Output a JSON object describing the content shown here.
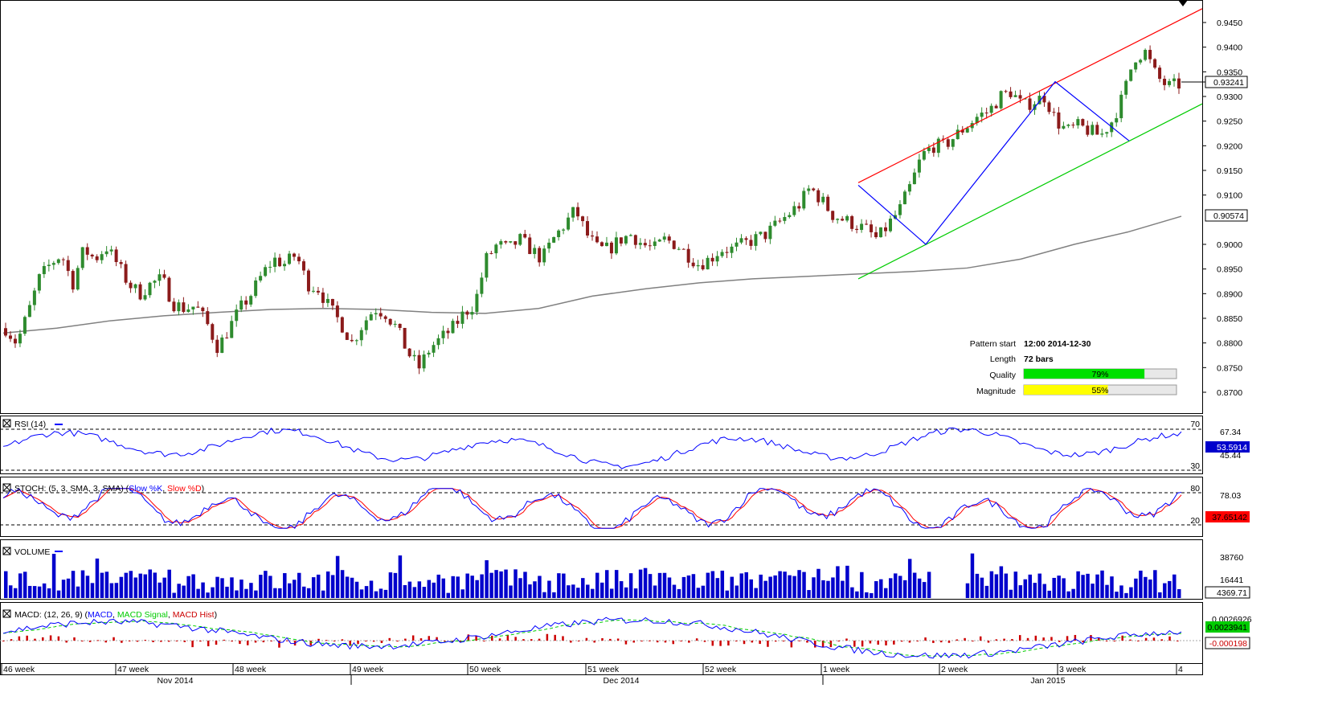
{
  "main_panel": {
    "y_ticks": [
      "0.9450",
      "0.9400",
      "0.9350",
      "0.9300",
      "0.9250",
      "0.9200",
      "0.9150",
      "0.9100",
      "0.9000",
      "0.8950",
      "0.8900",
      "0.8850",
      "0.8800",
      "0.8750",
      "0.8700"
    ],
    "current_price": "0.93241",
    "ma_value": "0.90574",
    "pattern_info": {
      "start_label": "Pattern start",
      "start_value": "12:00 2014-12-30",
      "length_label": "Length",
      "length_value": "72 bars",
      "quality_label": "Quality",
      "quality_value": "79%",
      "quality_fraction": 0.79,
      "magnitude_label": "Magnitude",
      "magnitude_value": "55%",
      "magnitude_fraction": 0.55
    }
  },
  "rsi_panel": {
    "title": "RSI (14)",
    "levels": [
      "70",
      "30"
    ],
    "side_values": [
      "67.34",
      "45.44"
    ],
    "current": "53.5914"
  },
  "stoch_panel": {
    "title_prefix": "STOCH: (5, 3, SMA, 3, SMA)",
    "slow_k": "Slow %K",
    "slow_d": "Slow %D",
    "levels": [
      "80",
      "20"
    ],
    "side_value": "78.03",
    "current": "37.65142"
  },
  "volume_panel": {
    "title": "VOLUME",
    "ticks": [
      "38760",
      "16441"
    ],
    "current": "4369.71"
  },
  "macd_panel": {
    "title_prefix": "MACD: (12, 26, 9)",
    "macd": "MACD",
    "signal": "MACD Signal",
    "hist": "MACD Hist",
    "side_value": "0.0026926",
    "current_macd": "0.0023941",
    "current_hist": "-0.000198"
  },
  "x_axis": {
    "weeks": [
      "46 week",
      "47 week",
      "48 week",
      "49 week",
      "50 week",
      "51 week",
      "52 week",
      "1 week",
      "2 week",
      "3 week",
      "4"
    ],
    "months": [
      "Nov 2014",
      "Dec 2014",
      "Jan 2015"
    ]
  },
  "colors": {
    "up_candle": "#2e8b2e",
    "down_candle": "#8b1a1a",
    "channel_upper": "#ff0000",
    "channel_lower": "#00cc00",
    "zigzag": "#0000ff",
    "moving_average": "#808080",
    "rsi": "#0000ff",
    "stoch_k": "#0000ff",
    "stoch_d": "#ff0000",
    "volume": "#0000cc",
    "macd": "#0000ff",
    "macd_signal": "#00cc00",
    "macd_hist": "#cc0000",
    "quality_bar": "#00e000",
    "magnitude_bar": "#ffff00"
  },
  "chart_data": {
    "type": "candlestick",
    "description_instrument": "",
    "y_range": [
      0.8675,
      0.948
    ],
    "price_path": [
      [
        0,
        0.883
      ],
      [
        2,
        0.88
      ],
      [
        4,
        0.886
      ],
      [
        6,
        0.893
      ],
      [
        8,
        0.896
      ],
      [
        10,
        0.898
      ],
      [
        12,
        0.892
      ],
      [
        14,
        0.899
      ],
      [
        16,
        0.897
      ],
      [
        18,
        0.8995
      ],
      [
        20,
        0.896
      ],
      [
        22,
        0.892
      ],
      [
        24,
        0.89
      ],
      [
        26,
        0.892
      ],
      [
        28,
        0.893
      ],
      [
        30,
        0.888
      ],
      [
        32,
        0.887
      ],
      [
        34,
        0.8875
      ],
      [
        36,
        0.884
      ],
      [
        38,
        0.879
      ],
      [
        40,
        0.883
      ],
      [
        42,
        0.887
      ],
      [
        44,
        0.89
      ],
      [
        46,
        0.894
      ],
      [
        48,
        0.897
      ],
      [
        50,
        0.896
      ],
      [
        52,
        0.898
      ],
      [
        54,
        0.892
      ],
      [
        56,
        0.891
      ],
      [
        58,
        0.887
      ],
      [
        60,
        0.884
      ],
      [
        62,
        0.88
      ],
      [
        64,
        0.884
      ],
      [
        66,
        0.887
      ],
      [
        68,
        0.886
      ],
      [
        70,
        0.883
      ],
      [
        72,
        0.878
      ],
      [
        74,
        0.875
      ],
      [
        76,
        0.879
      ],
      [
        78,
        0.881
      ],
      [
        80,
        0.883
      ],
      [
        82,
        0.886
      ],
      [
        84,
        0.888
      ],
      [
        86,
        0.897
      ],
      [
        88,
        0.9
      ],
      [
        90,
        0.899
      ],
      [
        92,
        0.901
      ],
      [
        94,
        0.899
      ],
      [
        96,
        0.897
      ],
      [
        98,
        0.901
      ],
      [
        100,
        0.904
      ],
      [
        102,
        0.907
      ],
      [
        104,
        0.902
      ],
      [
        106,
        0.899
      ],
      [
        108,
        0.899
      ],
      [
        110,
        0.901
      ],
      [
        112,
        0.902
      ],
      [
        114,
        0.9
      ],
      [
        116,
        0.899
      ],
      [
        118,
        0.901
      ],
      [
        120,
        0.9
      ],
      [
        122,
        0.898
      ],
      [
        124,
        0.896
      ],
      [
        126,
        0.897
      ],
      [
        128,
        0.899
      ],
      [
        130,
        0.899
      ],
      [
        132,
        0.9
      ],
      [
        134,
        0.901
      ],
      [
        136,
        0.902
      ],
      [
        138,
        0.904
      ],
      [
        140,
        0.906
      ],
      [
        142,
        0.908
      ],
      [
        144,
        0.9115
      ],
      [
        146,
        0.909
      ],
      [
        148,
        0.906
      ],
      [
        150,
        0.905
      ],
      [
        152,
        0.904
      ],
      [
        154,
        0.903
      ],
      [
        156,
        0.901
      ],
      [
        158,
        0.904
      ],
      [
        160,
        0.907
      ],
      [
        162,
        0.912
      ],
      [
        164,
        0.918
      ],
      [
        166,
        0.92
      ],
      [
        168,
        0.92
      ],
      [
        170,
        0.922
      ],
      [
        172,
        0.924
      ],
      [
        174,
        0.926
      ],
      [
        176,
        0.927
      ],
      [
        178,
        0.93
      ],
      [
        180,
        0.931
      ],
      [
        182,
        0.928
      ],
      [
        184,
        0.929
      ],
      [
        186,
        0.93
      ],
      [
        188,
        0.925
      ],
      [
        190,
        0.923
      ],
      [
        192,
        0.924
      ],
      [
        194,
        0.923
      ],
      [
        196,
        0.922
      ],
      [
        198,
        0.925
      ],
      [
        200,
        0.93
      ],
      [
        202,
        0.938
      ],
      [
        204,
        0.939
      ],
      [
        206,
        0.934
      ],
      [
        208,
        0.932
      ],
      [
        210,
        0.9324
      ]
    ],
    "channel": {
      "upper": [
        [
          0.9125,
          "start"
        ],
        [
          0.9478,
          "end"
        ]
      ],
      "lower": [
        [
          0.893,
          "start"
        ],
        [
          0.9285,
          "end"
        ]
      ]
    },
    "zigzag_points": [
      0.912,
      0.9,
      0.933,
      0.921
    ],
    "moving_average_path": [
      0.882,
      0.883,
      0.8845,
      0.8855,
      0.8862,
      0.8868,
      0.887,
      0.8868,
      0.8862,
      0.886,
      0.887,
      0.8895,
      0.891,
      0.8922,
      0.893,
      0.8935,
      0.894,
      0.8945,
      0.8952,
      0.897,
      0.9,
      0.9025,
      0.9057
    ],
    "rsi_range": [
      20,
      80
    ],
    "stoch_range": [
      0,
      100
    ],
    "macd_range": [
      -0.003,
      0.004
    ]
  }
}
